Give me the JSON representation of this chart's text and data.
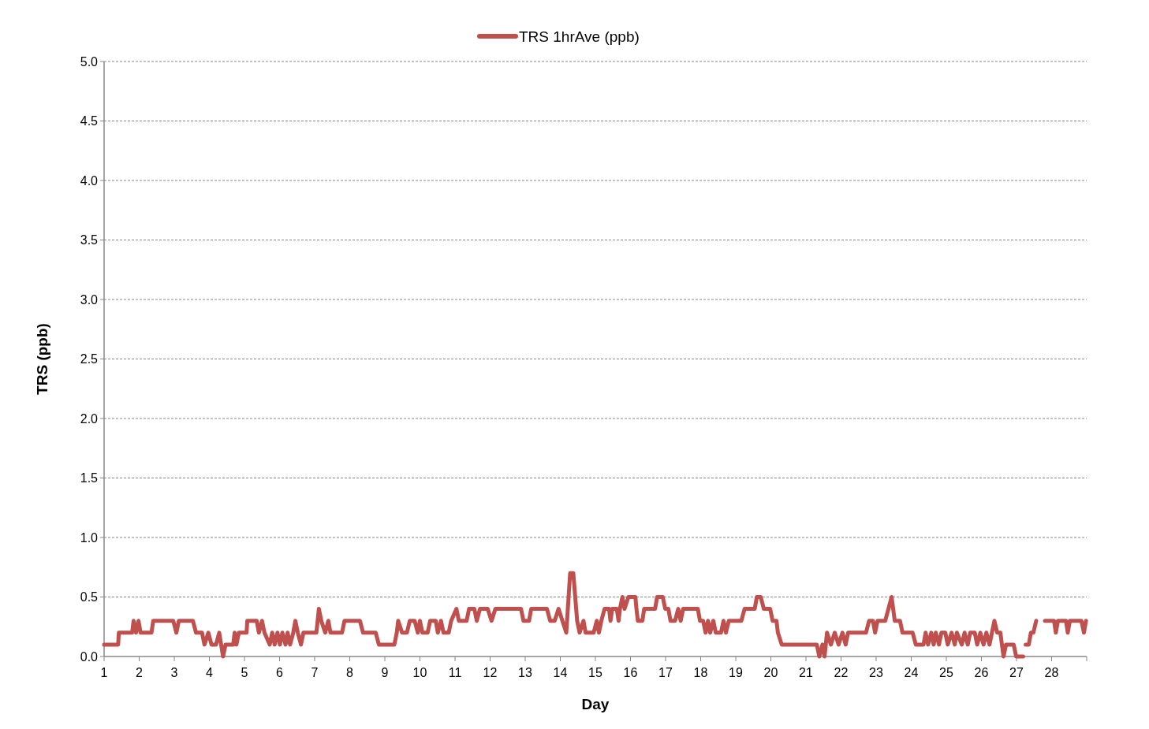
{
  "chart_data": {
    "type": "line",
    "xlabel": "Day",
    "ylabel": "TRS (ppb)",
    "legend": "top",
    "grid": "y",
    "line_style": "solid",
    "marker": "none",
    "xlim": [
      1,
      29
    ],
    "xticks": [
      1,
      2,
      3,
      4,
      5,
      6,
      7,
      8,
      9,
      10,
      11,
      12,
      13,
      14,
      15,
      16,
      17,
      18,
      19,
      20,
      21,
      22,
      23,
      24,
      25,
      26,
      27,
      28,
      {
        "value": 29,
        "label": null
      }
    ],
    "ylim": [
      0,
      5
    ],
    "yticks": [
      {
        "value": 0,
        "label": "0.0"
      },
      {
        "value": 0.5,
        "label": "0.5"
      },
      {
        "value": 1,
        "label": "1.0"
      },
      {
        "value": 1.5,
        "label": "1.5"
      },
      {
        "value": 2,
        "label": "2.0"
      },
      {
        "value": 2.5,
        "label": "2.5"
      },
      {
        "value": 3,
        "label": "3.0"
      },
      {
        "value": 3.5,
        "label": "3.5"
      },
      {
        "value": 4,
        "label": "4.0"
      },
      {
        "value": 4.5,
        "label": "4.5"
      },
      {
        "value": 5,
        "label": "5.0"
      }
    ],
    "series": [
      {
        "name": "TRS 1hrAve (ppb)",
        "color": "#c0504d",
        "x": [
          1.0,
          1.4,
          1.42,
          1.8,
          1.84,
          1.91,
          1.98,
          2.04,
          2.35,
          2.4,
          2.97,
          3.06,
          3.13,
          3.53,
          3.62,
          3.79,
          3.86,
          3.97,
          4.06,
          4.19,
          4.28,
          4.39,
          4.46,
          4.68,
          4.72,
          4.77,
          4.84,
          5.06,
          5.08,
          5.35,
          5.41,
          5.5,
          5.57,
          5.72,
          5.79,
          5.86,
          5.94,
          6.01,
          6.08,
          6.17,
          6.23,
          6.3,
          6.39,
          6.45,
          6.52,
          6.61,
          6.68,
          7.05,
          7.12,
          7.19,
          7.3,
          7.39,
          7.45,
          7.78,
          7.85,
          8.01,
          8.07,
          8.29,
          8.38,
          8.74,
          8.83,
          9.27,
          9.34,
          9.38,
          9.49,
          9.63,
          9.71,
          9.85,
          9.94,
          10.0,
          10.07,
          10.22,
          10.29,
          10.45,
          10.51,
          10.6,
          10.67,
          10.82,
          10.89,
          11.04,
          11.11,
          11.33,
          11.4,
          11.55,
          11.62,
          11.71,
          11.93,
          12.04,
          12.15,
          12.88,
          12.95,
          13.11,
          13.17,
          13.62,
          13.71,
          13.84,
          13.95,
          14.06,
          14.17,
          14.28,
          14.37,
          14.48,
          14.55,
          14.66,
          14.72,
          14.95,
          15.04,
          15.1,
          15.17,
          15.26,
          15.39,
          15.43,
          15.48,
          15.61,
          15.66,
          15.7,
          15.77,
          15.83,
          15.94,
          16.14,
          16.17,
          16.21,
          16.34,
          16.39,
          16.7,
          16.76,
          16.92,
          16.99,
          17.08,
          17.14,
          17.27,
          17.36,
          17.43,
          17.5,
          17.92,
          17.98,
          18.07,
          18.14,
          18.21,
          18.27,
          18.36,
          18.43,
          18.58,
          18.65,
          18.72,
          18.8,
          19.16,
          19.25,
          19.54,
          19.6,
          19.71,
          19.8,
          19.98,
          20.05,
          20.16,
          20.2,
          20.31,
          21.31,
          21.38,
          21.47,
          21.53,
          21.6,
          21.71,
          21.82,
          21.93,
          22.04,
          22.13,
          22.2,
          22.71,
          22.8,
          22.91,
          22.97,
          23.04,
          23.26,
          23.35,
          23.44,
          23.53,
          23.57,
          23.68,
          23.75,
          24.04,
          24.13,
          24.35,
          24.41,
          24.48,
          24.57,
          24.64,
          24.7,
          24.79,
          24.86,
          24.97,
          25.04,
          25.15,
          25.24,
          25.3,
          25.44,
          25.52,
          25.61,
          25.68,
          25.81,
          25.88,
          25.97,
          26.06,
          26.14,
          26.23,
          26.3,
          26.37,
          26.45,
          26.54,
          26.63,
          26.7,
          26.92,
          26.99,
          27.19,
          27.22,
          27.26,
          27.35,
          27.41,
          27.48,
          27.56,
          27.7,
          27.81,
          28.07,
          28.12,
          28.18,
          28.41,
          28.46,
          28.52,
          28.85,
          28.92,
          28.98
        ],
        "values": [
          0.1,
          0.1,
          0.2,
          0.2,
          0.3,
          0.2,
          0.3,
          0.2,
          0.2,
          0.3,
          0.3,
          0.2,
          0.3,
          0.3,
          0.2,
          0.2,
          0.1,
          0.2,
          0.1,
          0.1,
          0.2,
          0.0,
          0.1,
          0.1,
          0.2,
          0.1,
          0.2,
          0.2,
          0.3,
          0.3,
          0.2,
          0.3,
          0.2,
          0.1,
          0.2,
          0.1,
          0.2,
          0.1,
          0.2,
          0.1,
          0.2,
          0.1,
          0.2,
          0.3,
          0.2,
          0.1,
          0.2,
          0.2,
          0.4,
          0.3,
          0.2,
          0.3,
          0.2,
          0.2,
          0.3,
          0.3,
          0.3,
          0.3,
          0.2,
          0.2,
          0.1,
          0.1,
          0.2,
          0.3,
          0.2,
          0.2,
          0.3,
          0.3,
          0.2,
          0.3,
          0.2,
          0.2,
          0.3,
          0.3,
          0.2,
          0.3,
          0.2,
          0.2,
          0.3,
          0.4,
          0.3,
          0.3,
          0.4,
          0.4,
          0.3,
          0.4,
          0.4,
          0.3,
          0.4,
          0.4,
          0.3,
          0.3,
          0.4,
          0.4,
          0.3,
          0.3,
          0.4,
          0.3,
          0.2,
          0.7,
          0.7,
          0.3,
          0.2,
          0.3,
          0.2,
          0.2,
          0.3,
          0.2,
          0.3,
          0.4,
          0.4,
          0.3,
          0.4,
          0.4,
          0.3,
          0.4,
          0.5,
          0.4,
          0.5,
          0.5,
          0.4,
          0.3,
          0.3,
          0.4,
          0.4,
          0.5,
          0.5,
          0.4,
          0.4,
          0.3,
          0.3,
          0.4,
          0.3,
          0.4,
          0.4,
          0.3,
          0.3,
          0.2,
          0.3,
          0.2,
          0.3,
          0.2,
          0.2,
          0.3,
          0.2,
          0.3,
          0.3,
          0.4,
          0.4,
          0.5,
          0.5,
          0.4,
          0.4,
          0.3,
          0.3,
          0.2,
          0.1,
          0.1,
          0.0,
          0.1,
          0.0,
          0.2,
          0.1,
          0.2,
          0.1,
          0.2,
          0.1,
          0.2,
          0.2,
          0.3,
          0.3,
          0.2,
          0.3,
          0.3,
          0.4,
          0.5,
          0.3,
          0.3,
          0.3,
          0.2,
          0.2,
          0.1,
          0.1,
          0.2,
          0.1,
          0.2,
          0.1,
          0.2,
          0.1,
          0.2,
          0.2,
          0.1,
          0.2,
          0.1,
          0.2,
          0.1,
          0.2,
          0.1,
          0.2,
          0.2,
          0.1,
          0.2,
          0.1,
          0.2,
          0.1,
          0.2,
          0.3,
          0.2,
          0.2,
          0.0,
          0.1,
          0.1,
          0.0,
          0.0,
          null,
          0.1,
          0.1,
          0.2,
          0.2,
          0.3,
          null,
          0.3,
          0.3,
          0.2,
          0.3,
          0.3,
          0.2,
          0.3,
          0.3,
          0.2,
          0.3
        ]
      }
    ]
  }
}
